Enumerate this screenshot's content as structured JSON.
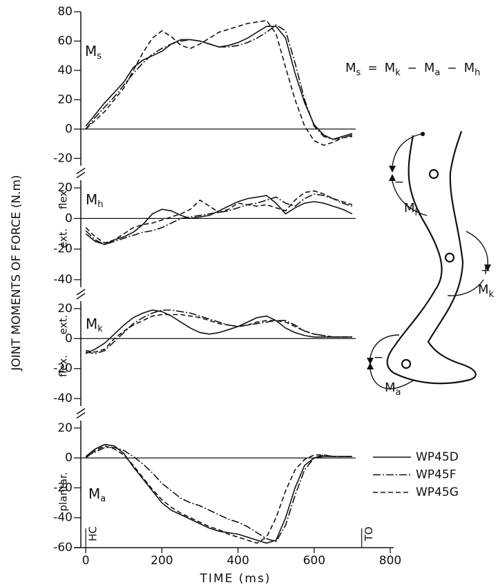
{
  "ylabel": "JOINT MOMENTS OF FORCE (N.m)",
  "equation": {
    "terms": [
      {
        "symbol": "M",
        "subscript": "s"
      },
      {
        "symbol": "M",
        "subscript": "k"
      },
      {
        "symbol": "M",
        "subscript": "a"
      },
      {
        "symbol": "M",
        "subscript": "h"
      }
    ],
    "operators": [
      "=",
      "−",
      "−"
    ]
  },
  "diagram": {
    "labels": [
      {
        "symbol": "M",
        "subscript": "h",
        "sign": "−"
      },
      {
        "symbol": "M",
        "subscript": "k",
        "sign": "+"
      },
      {
        "symbol": "M",
        "subscript": "a",
        "sign": "−"
      }
    ]
  },
  "chart_data": [
    {
      "type": "line",
      "symbol": "M",
      "subscript": "s",
      "x": [
        0,
        25,
        50,
        75,
        100,
        125,
        150,
        175,
        200,
        225,
        250,
        275,
        300,
        325,
        350,
        375,
        400,
        425,
        450,
        475,
        500,
        525,
        550,
        575,
        600,
        625,
        650,
        675,
        700
      ],
      "xlim": [
        -13,
        800
      ],
      "ylim": [
        -25,
        80
      ],
      "yticks": [
        -20,
        0,
        20,
        40,
        60,
        80
      ],
      "series": [
        {
          "name": "WP45D",
          "color": "#111111",
          "style": "solid",
          "values": [
            2,
            10,
            18,
            25,
            32,
            42,
            47,
            50,
            53,
            58,
            61,
            61,
            60,
            58,
            56,
            57,
            59,
            62,
            66,
            70,
            70,
            62,
            38,
            18,
            3,
            -4,
            -7,
            -5,
            -3
          ]
        },
        {
          "name": "WP45F",
          "color": "#111111",
          "style": "dashdot",
          "values": [
            0,
            8,
            15,
            22,
            30,
            38,
            45,
            51,
            55,
            58,
            60,
            61,
            60,
            58,
            56,
            56,
            57,
            59,
            62,
            66,
            71,
            67,
            45,
            20,
            2,
            -5,
            -7,
            -6,
            -4
          ]
        },
        {
          "name": "WP45G",
          "color": "#111111",
          "style": "dashed",
          "values": [
            0,
            6,
            12,
            20,
            28,
            40,
            52,
            62,
            67,
            63,
            57,
            55,
            58,
            62,
            66,
            68,
            70,
            72,
            73,
            74,
            65,
            42,
            20,
            2,
            -8,
            -11,
            -9,
            -6,
            -5
          ]
        }
      ]
    },
    {
      "type": "line",
      "symbol": "M",
      "subscript": "h",
      "side_labels": [
        "flex.",
        "ext."
      ],
      "x": [
        0,
        25,
        50,
        75,
        100,
        125,
        150,
        175,
        200,
        225,
        250,
        275,
        300,
        325,
        350,
        375,
        400,
        425,
        450,
        475,
        500,
        525,
        550,
        575,
        600,
        625,
        650,
        675,
        700
      ],
      "xlim": [
        -13,
        800
      ],
      "ylim": [
        -45,
        25
      ],
      "yticks": [
        -40,
        -20,
        0,
        20
      ],
      "series": [
        {
          "name": "WP45D",
          "color": "#111111",
          "style": "solid",
          "values": [
            -10,
            -15,
            -17,
            -14,
            -12,
            -9,
            -4,
            3,
            6,
            5,
            2,
            0,
            1,
            2,
            5,
            8,
            11,
            13,
            14,
            15,
            10,
            3,
            7,
            10,
            11,
            10,
            8,
            6,
            3
          ]
        },
        {
          "name": "WP45F",
          "color": "#111111",
          "style": "dashdot",
          "values": [
            -8,
            -14,
            -17,
            -15,
            -13,
            -11,
            -9,
            -8,
            -6,
            -3,
            0,
            1,
            2,
            3,
            4,
            5,
            7,
            9,
            10,
            12,
            14,
            10,
            8,
            13,
            16,
            15,
            13,
            10,
            8
          ]
        },
        {
          "name": "WP45G",
          "color": "#111111",
          "style": "dashed",
          "values": [
            -6,
            -12,
            -16,
            -14,
            -10,
            -6,
            -4,
            -3,
            -1,
            1,
            3,
            6,
            12,
            8,
            4,
            6,
            10,
            9,
            8,
            9,
            7,
            5,
            12,
            17,
            18,
            16,
            13,
            11,
            9
          ]
        }
      ]
    },
    {
      "type": "line",
      "symbol": "M",
      "subscript": "k",
      "side_labels": [
        "ext.",
        "flex."
      ],
      "x": [
        0,
        25,
        50,
        75,
        100,
        125,
        150,
        175,
        200,
        225,
        250,
        275,
        300,
        325,
        350,
        375,
        400,
        425,
        450,
        475,
        500,
        525,
        550,
        575,
        600,
        625,
        650,
        675,
        700
      ],
      "xlim": [
        -13,
        800
      ],
      "ylim": [
        -45,
        25
      ],
      "yticks": [
        -40,
        -20,
        0,
        20
      ],
      "series": [
        {
          "name": "WP45D",
          "color": "#111111",
          "style": "solid",
          "values": [
            -10,
            -7,
            -3,
            3,
            9,
            14,
            17,
            19,
            18,
            15,
            11,
            7,
            4,
            3,
            4,
            6,
            8,
            11,
            14,
            15,
            12,
            7,
            4,
            2,
            1,
            1,
            1,
            1,
            1
          ]
        },
        {
          "name": "WP45F",
          "color": "#111111",
          "style": "dashdot",
          "values": [
            -9,
            -10,
            -8,
            -2,
            4,
            10,
            14,
            17,
            19,
            19,
            18,
            17,
            15,
            13,
            11,
            9,
            8,
            9,
            10,
            11,
            12,
            12,
            9,
            5,
            3,
            2,
            1,
            1,
            1
          ]
        },
        {
          "name": "WP45G",
          "color": "#111111",
          "style": "dashed",
          "values": [
            -8,
            -9,
            -7,
            0,
            5,
            9,
            12,
            15,
            16,
            16,
            16,
            15,
            14,
            12,
            10,
            9,
            8,
            9,
            11,
            12,
            12,
            11,
            8,
            5,
            3,
            2,
            1,
            1,
            1
          ]
        }
      ]
    },
    {
      "type": "line",
      "symbol": "M",
      "subscript": "a",
      "side_labels": [
        "plantar."
      ],
      "x": [
        0,
        25,
        50,
        75,
        100,
        125,
        150,
        175,
        200,
        225,
        250,
        275,
        300,
        325,
        350,
        375,
        400,
        425,
        450,
        475,
        500,
        525,
        550,
        575,
        600,
        625,
        650,
        675,
        700
      ],
      "xlim": [
        -13,
        800
      ],
      "xticks": [
        0,
        200,
        400,
        600,
        800
      ],
      "xlabel": "TIME (ms)",
      "ylim": [
        -60,
        25
      ],
      "yticks": [
        -60,
        -40,
        -20,
        0,
        20
      ],
      "annotations": [
        {
          "text": "HC",
          "x": 0
        },
        {
          "text": "TO",
          "x": 725
        }
      ],
      "series": [
        {
          "name": "WP45D",
          "color": "#111111",
          "style": "solid",
          "values": [
            1,
            6,
            9,
            8,
            3,
            -6,
            -14,
            -22,
            -30,
            -35,
            -38,
            -41,
            -44,
            -47,
            -49,
            -50,
            -51,
            -53,
            -55,
            -57,
            -55,
            -40,
            -20,
            -5,
            0,
            1,
            1,
            1,
            1
          ]
        },
        {
          "name": "WP45F",
          "color": "#111111",
          "style": "dashdot",
          "values": [
            1,
            4,
            7,
            7,
            5,
            1,
            -4,
            -10,
            -17,
            -22,
            -27,
            -30,
            -32,
            -35,
            -38,
            -41,
            -43,
            -46,
            -50,
            -54,
            -56,
            -45,
            -25,
            -8,
            0,
            2,
            1,
            1,
            1
          ]
        },
        {
          "name": "WP45G",
          "color": "#111111",
          "style": "dashed",
          "values": [
            0,
            5,
            8,
            6,
            2,
            -5,
            -13,
            -21,
            -28,
            -33,
            -37,
            -40,
            -43,
            -46,
            -48,
            -51,
            -53,
            -55,
            -57,
            -53,
            -40,
            -22,
            -8,
            -1,
            2,
            2,
            1,
            1,
            1
          ]
        }
      ]
    }
  ]
}
